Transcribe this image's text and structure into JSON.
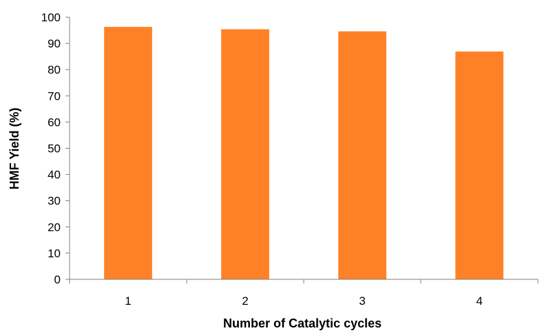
{
  "chart_data": {
    "type": "bar",
    "title": "",
    "xlabel": "Number of Catalytic cycles",
    "ylabel": "HMF Yield (%)",
    "categories": [
      "1",
      "2",
      "3",
      "4"
    ],
    "values": [
      96.3,
      95.4,
      94.6,
      86.9
    ],
    "ylim": [
      0,
      100
    ],
    "yticks": [
      0,
      10,
      20,
      30,
      40,
      50,
      60,
      70,
      80,
      90,
      100
    ],
    "grid": false,
    "legend": "none",
    "bar_color": "#FF8127",
    "axis_color": "#7F7F7F"
  }
}
